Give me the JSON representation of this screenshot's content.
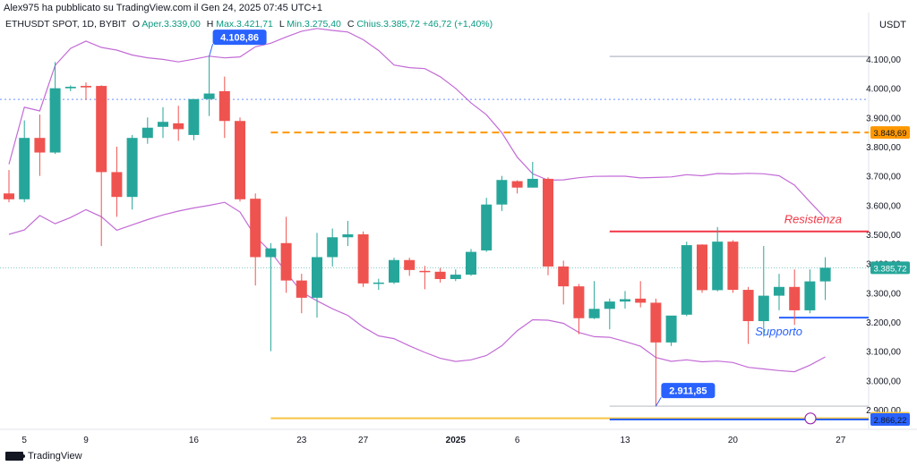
{
  "header": {
    "published_by": "Alex975 ha pubblicato su TradingView.com il Gen 24, 2025 07:45 UTC+1"
  },
  "legend": {
    "symbol": "ETHUSDT SPOT, 1D, BYBIT",
    "open_label": "O",
    "open": "Aper.3.339,00",
    "high_label": "H",
    "high": "Max.3.421,71",
    "low_label": "L",
    "low": "Min.3.275,40",
    "close_label": "C",
    "close": "Chius.3.385,72",
    "change": "+46,72 (+1,40%)"
  },
  "currency": "USDT",
  "footer": {
    "brand": "TradingView"
  },
  "colors": {
    "up": "#26a69a",
    "down": "#ef5350",
    "bollinger": "#c36bd6",
    "resistance": "#f23645",
    "support": "#2962ff",
    "dashed_orange": "#ff9800",
    "yellow_line": "#f6c343",
    "price_label": "#26a69a",
    "callout": "#2962ff"
  },
  "chart_data": {
    "type": "candlestick",
    "ylim": [
      2800,
      4180
    ],
    "y_ticks": [
      "2.900,00",
      "3.000,00",
      "3.100,00",
      "3.200,00",
      "3.300,00",
      "3.400,00",
      "3.500,00",
      "3.600,00",
      "3.700,00",
      "3.800,00",
      "3.900,00",
      "4.000,00",
      "4.100,00"
    ],
    "x_ticks": [
      {
        "label": "5",
        "i": 1
      },
      {
        "label": "9",
        "i": 5
      },
      {
        "label": "16",
        "i": 12
      },
      {
        "label": "23",
        "i": 19
      },
      {
        "label": "27",
        "i": 23
      },
      {
        "label": "2025",
        "i": 29,
        "bold": true
      },
      {
        "label": "6",
        "i": 33
      },
      {
        "label": "13",
        "i": 40
      },
      {
        "label": "20",
        "i": 47
      },
      {
        "label": "27",
        "i": 54
      }
    ],
    "candles": [
      {
        "o": 3640,
        "h": 3720,
        "l": 3610,
        "c": 3620
      },
      {
        "o": 3620,
        "h": 3890,
        "l": 3610,
        "c": 3830
      },
      {
        "o": 3830,
        "h": 3910,
        "l": 3700,
        "c": 3780
      },
      {
        "o": 3780,
        "h": 4090,
        "l": 3775,
        "c": 4000
      },
      {
        "o": 4000,
        "h": 4010,
        "l": 3990,
        "c": 4005
      },
      {
        "o": 4008,
        "h": 4020,
        "l": 3960,
        "c": 4003
      },
      {
        "o": 4008,
        "h": 4010,
        "l": 3460,
        "c": 3713
      },
      {
        "o": 3713,
        "h": 3800,
        "l": 3560,
        "c": 3628
      },
      {
        "o": 3628,
        "h": 3840,
        "l": 3585,
        "c": 3830
      },
      {
        "o": 3830,
        "h": 3900,
        "l": 3810,
        "c": 3865
      },
      {
        "o": 3868,
        "h": 3935,
        "l": 3830,
        "c": 3885
      },
      {
        "o": 3880,
        "h": 3940,
        "l": 3820,
        "c": 3860
      },
      {
        "o": 3840,
        "h": 3960,
        "l": 3822,
        "c": 3963
      },
      {
        "o": 3963,
        "h": 4108.86,
        "l": 3905,
        "c": 3982
      },
      {
        "o": 3990,
        "h": 4040,
        "l": 3830,
        "c": 3888
      },
      {
        "o": 3888,
        "h": 3900,
        "l": 3612,
        "c": 3620
      },
      {
        "o": 3622,
        "h": 3640,
        "l": 3325,
        "c": 3422
      },
      {
        "o": 3422,
        "h": 3470,
        "l": 3100,
        "c": 3452
      },
      {
        "o": 3470,
        "h": 3560,
        "l": 3300,
        "c": 3342
      },
      {
        "o": 3342,
        "h": 3365,
        "l": 3230,
        "c": 3283
      },
      {
        "o": 3283,
        "h": 3505,
        "l": 3215,
        "c": 3422
      },
      {
        "o": 3422,
        "h": 3520,
        "l": 3390,
        "c": 3490
      },
      {
        "o": 3490,
        "h": 3546,
        "l": 3460,
        "c": 3500
      },
      {
        "o": 3500,
        "h": 3510,
        "l": 3320,
        "c": 3332
      },
      {
        "o": 3332,
        "h": 3348,
        "l": 3310,
        "c": 3335
      },
      {
        "o": 3335,
        "h": 3420,
        "l": 3330,
        "c": 3412
      },
      {
        "o": 3412,
        "h": 3420,
        "l": 3358,
        "c": 3378
      },
      {
        "o": 3375,
        "h": 3392,
        "l": 3312,
        "c": 3372
      },
      {
        "o": 3372,
        "h": 3385,
        "l": 3335,
        "c": 3347
      },
      {
        "o": 3347,
        "h": 3380,
        "l": 3340,
        "c": 3362
      },
      {
        "o": 3362,
        "h": 3450,
        "l": 3358,
        "c": 3440
      },
      {
        "o": 3445,
        "h": 3625,
        "l": 3440,
        "c": 3602
      },
      {
        "o": 3602,
        "h": 3700,
        "l": 3580,
        "c": 3686
      },
      {
        "o": 3682,
        "h": 3685,
        "l": 3640,
        "c": 3660
      },
      {
        "o": 3660,
        "h": 3748,
        "l": 3660,
        "c": 3690
      },
      {
        "o": 3690,
        "h": 3695,
        "l": 3360,
        "c": 3390
      },
      {
        "o": 3390,
        "h": 3410,
        "l": 3260,
        "c": 3322
      },
      {
        "o": 3322,
        "h": 3330,
        "l": 3158,
        "c": 3213
      },
      {
        "o": 3213,
        "h": 3340,
        "l": 3210,
        "c": 3245
      },
      {
        "o": 3245,
        "h": 3280,
        "l": 3175,
        "c": 3270
      },
      {
        "o": 3270,
        "h": 3306,
        "l": 3246,
        "c": 3278
      },
      {
        "o": 3280,
        "h": 3340,
        "l": 3250,
        "c": 3266
      },
      {
        "o": 3266,
        "h": 3280,
        "l": 2911.85,
        "c": 3130
      },
      {
        "o": 3130,
        "h": 3220,
        "l": 3118,
        "c": 3222
      },
      {
        "o": 3225,
        "h": 3475,
        "l": 3220,
        "c": 3463
      },
      {
        "o": 3465,
        "h": 3466,
        "l": 3300,
        "c": 3309
      },
      {
        "o": 3309,
        "h": 3525,
        "l": 3305,
        "c": 3475
      },
      {
        "o": 3475,
        "h": 3480,
        "l": 3300,
        "c": 3310
      },
      {
        "o": 3310,
        "h": 3320,
        "l": 3125,
        "c": 3203
      },
      {
        "o": 3203,
        "h": 3460,
        "l": 3150,
        "c": 3290
      },
      {
        "o": 3290,
        "h": 3365,
        "l": 3240,
        "c": 3320
      },
      {
        "o": 3320,
        "h": 3380,
        "l": 3190,
        "c": 3240
      },
      {
        "o": 3240,
        "h": 3380,
        "l": 3230,
        "c": 3339
      },
      {
        "o": 3339,
        "h": 3421.71,
        "l": 3275.4,
        "c": 3385.72
      }
    ],
    "bollinger_upper": [
      3745,
      3840,
      3962,
      4005,
      4030,
      4056,
      4061,
      4036,
      4040,
      4070,
      4096,
      4110,
      4112,
      4115,
      4117,
      4133,
      4177,
      4160,
      4158,
      4140,
      4108,
      4072,
      3988,
      3885,
      3755,
      3651,
      3584,
      3523,
      3571,
      3672,
      3702,
      3701,
      3702,
      3707,
      3707,
      3708,
      3707,
      3709,
      3710,
      3711,
      3711,
      3710,
      3707,
      3591,
      3503,
      3479,
      3487
    ],
    "bollinger_middle": [],
    "bollinger_lower": [
      3100,
      3198,
      3298,
      3297,
      3325,
      3357,
      3402,
      3458,
      3498,
      3510,
      3527,
      3558,
      3578,
      3584,
      3614,
      3626,
      3621,
      3627,
      3627,
      3627,
      3614,
      3592,
      3513,
      3438,
      3362,
      3335,
      3315,
      3292,
      3248,
      3211,
      3163,
      3129,
      3130,
      3139,
      3189,
      3214
    ],
    "boll_upper_start_i": -1,
    "boll_lower_start_i": -1,
    "levels": [
      {
        "name": "resistance",
        "price": 3510,
        "label": "Resistenza",
        "color": "#f23645",
        "from_i": 39
      },
      {
        "name": "support",
        "price": 3215,
        "label": "Supporto",
        "color": "#2962ff",
        "from_i": 51
      },
      {
        "name": "dashed-orange",
        "price": 3848.69,
        "label": "3.848,69",
        "color": "#ff9800",
        "from_i": 17
      },
      {
        "name": "yellow",
        "price": 2870.37,
        "label": "2.870,37",
        "color": "#f6c343",
        "from_i": 17
      },
      {
        "name": "blue-low",
        "price": 2866.22,
        "label": "2.866,22",
        "color": "#2962ff",
        "from_i": 39
      },
      {
        "name": "grey-upper",
        "price": 4108.86,
        "label": "",
        "color": "#9aa0ae",
        "from_i": 39
      },
      {
        "name": "grey-lower",
        "price": 2911.85,
        "label": "",
        "color": "#b0b4be",
        "from_i": 39
      }
    ],
    "dotted_level": {
      "price": 3962,
      "color": "#2962ff"
    },
    "last_price": {
      "price": 3385.72,
      "label": "3.385,72"
    },
    "callouts": [
      {
        "label": "4.108,86",
        "i": 13,
        "price": 4108.86,
        "dir": "up"
      },
      {
        "label": "2.911,85",
        "i": 42,
        "price": 2911.85,
        "dir": "down"
      }
    ]
  }
}
